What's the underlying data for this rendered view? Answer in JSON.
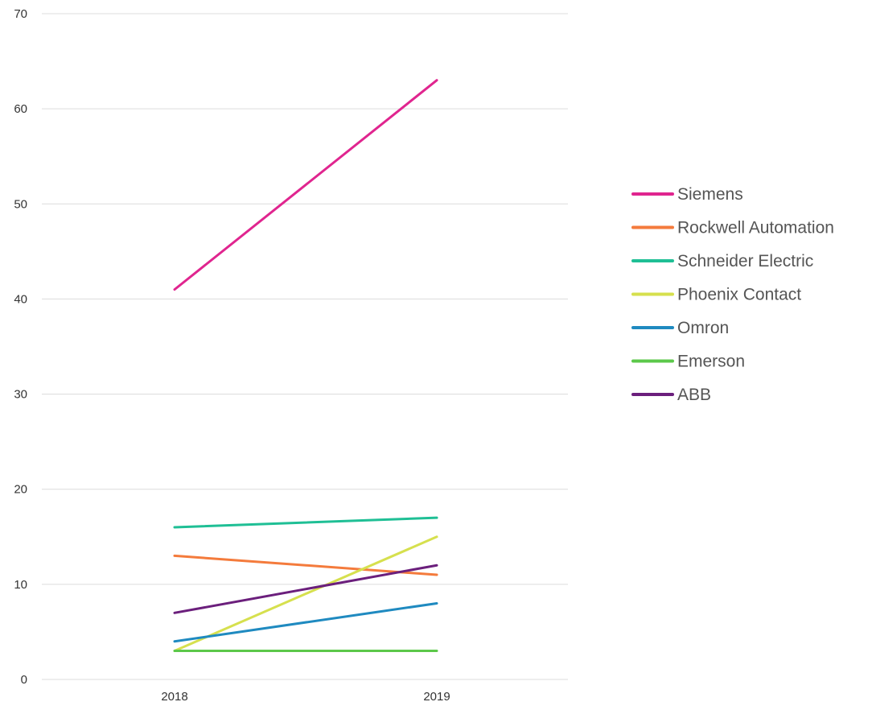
{
  "chart_data": {
    "type": "line",
    "title": "",
    "xlabel": "",
    "ylabel": "",
    "categories": [
      "2018",
      "2019"
    ],
    "ylim": [
      0,
      70
    ],
    "yticks": [
      0,
      10,
      20,
      30,
      40,
      50,
      60,
      70
    ],
    "grid": true,
    "legend_position": "right",
    "series": [
      {
        "name": "Siemens",
        "color": "#e0258f",
        "values": [
          41,
          63
        ]
      },
      {
        "name": "Rockwell Automation",
        "color": "#f47b3c",
        "values": [
          13,
          11
        ]
      },
      {
        "name": "Schneider Electric",
        "color": "#1fbf95",
        "values": [
          16,
          17
        ]
      },
      {
        "name": "Phoenix Contact",
        "color": "#d6e04e",
        "values": [
          3,
          15
        ]
      },
      {
        "name": "Omron",
        "color": "#1f8ac0",
        "values": [
          4,
          8
        ]
      },
      {
        "name": "Emerson",
        "color": "#5cc84a",
        "values": [
          3,
          3
        ]
      },
      {
        "name": "ABB",
        "color": "#6b1f7c",
        "values": [
          7,
          12
        ]
      }
    ]
  }
}
